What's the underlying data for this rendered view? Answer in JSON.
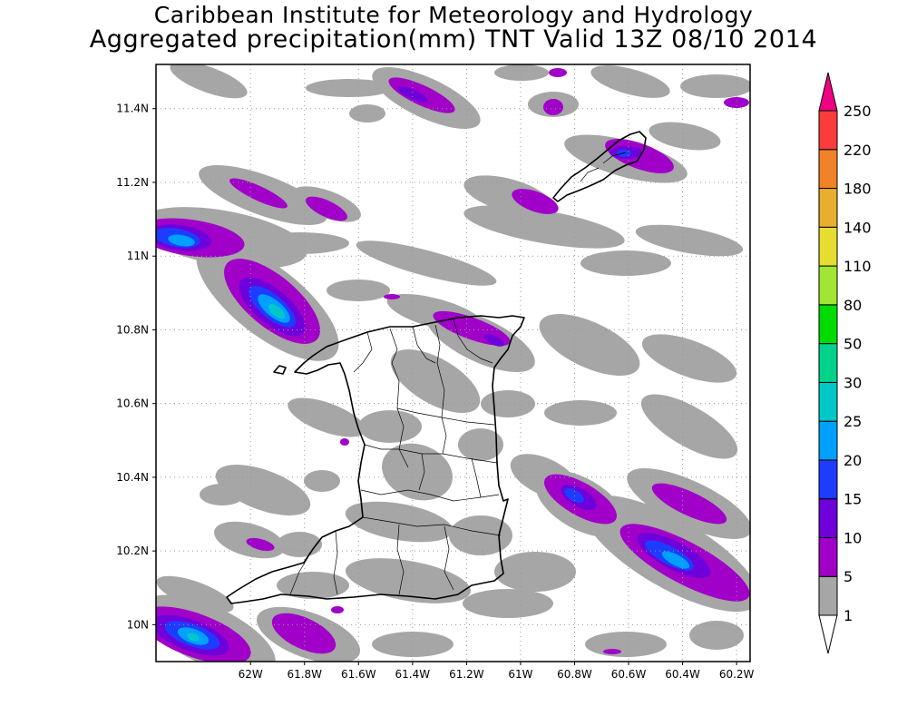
{
  "title": "Caribbean Institute for Meteorology and Hydrology",
  "subtitle": "Aggregated precipitation(mm) TNT Valid 13Z 08/10 2014",
  "map": {
    "lon_range": [
      -62.35,
      -60.15
    ],
    "lat_range": [
      9.9,
      11.52
    ],
    "x_ticks": [
      "62W",
      "61.8W",
      "61.6W",
      "61.4W",
      "61.2W",
      "61W",
      "60.8W",
      "60.6W",
      "60.4W",
      "60.2W"
    ],
    "y_ticks": [
      "10N",
      "10.2N",
      "10.4N",
      "10.6N",
      "10.8N",
      "11N",
      "11.2N",
      "11.4N"
    ],
    "grid": true
  },
  "colorbar": {
    "levels": [
      "1",
      "5",
      "10",
      "15",
      "20",
      "25",
      "30",
      "50",
      "80",
      "110",
      "140",
      "180",
      "220",
      "250"
    ],
    "colors": [
      "#ffffff",
      "#a6a6a6",
      "#a000c8",
      "#6e00dc",
      "#1e3cff",
      "#00a0ff",
      "#00c8c8",
      "#00d28c",
      "#00dc00",
      "#a0e632",
      "#e6dc32",
      "#e6af2d",
      "#f08228",
      "#fa3c3c",
      "#f00082"
    ]
  }
}
